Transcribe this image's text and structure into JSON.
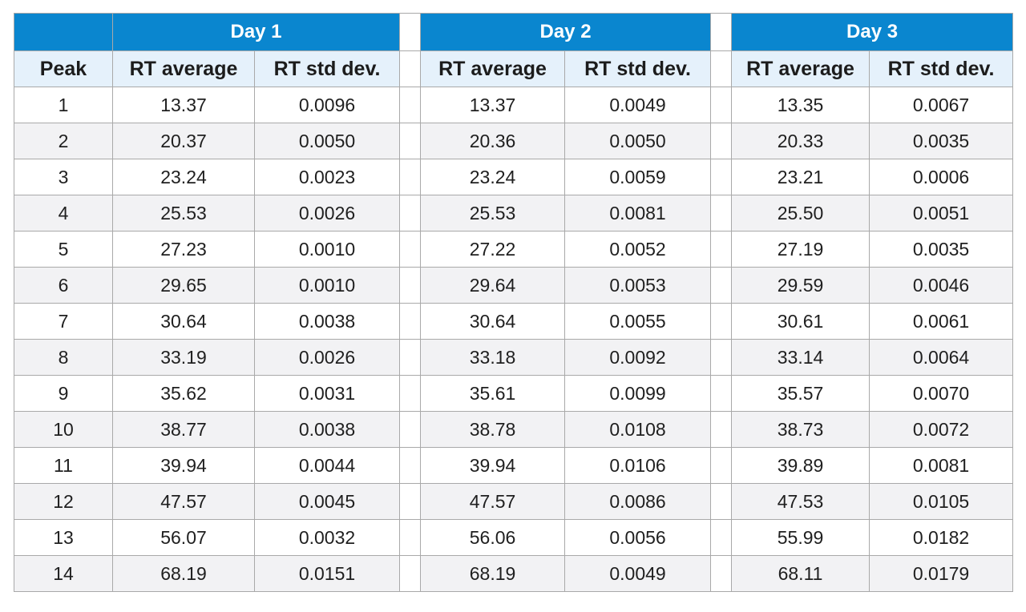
{
  "table": {
    "days": [
      "Day 1",
      "Day 2",
      "Day 3"
    ],
    "columns": {
      "peak": "Peak",
      "rt_average": "RT average",
      "rt_std_dev": "RT std dev."
    },
    "rows": [
      {
        "peak": "1",
        "day1_avg": "13.37",
        "day1_sd": "0.0096",
        "day2_avg": "13.37",
        "day2_sd": "0.0049",
        "day3_avg": "13.35",
        "day3_sd": "0.0067"
      },
      {
        "peak": "2",
        "day1_avg": "20.37",
        "day1_sd": "0.0050",
        "day2_avg": "20.36",
        "day2_sd": "0.0050",
        "day3_avg": "20.33",
        "day3_sd": "0.0035"
      },
      {
        "peak": "3",
        "day1_avg": "23.24",
        "day1_sd": "0.0023",
        "day2_avg": "23.24",
        "day2_sd": "0.0059",
        "day3_avg": "23.21",
        "day3_sd": "0.0006"
      },
      {
        "peak": "4",
        "day1_avg": "25.53",
        "day1_sd": "0.0026",
        "day2_avg": "25.53",
        "day2_sd": "0.0081",
        "day3_avg": "25.50",
        "day3_sd": "0.0051"
      },
      {
        "peak": "5",
        "day1_avg": "27.23",
        "day1_sd": "0.0010",
        "day2_avg": "27.22",
        "day2_sd": "0.0052",
        "day3_avg": "27.19",
        "day3_sd": "0.0035"
      },
      {
        "peak": "6",
        "day1_avg": "29.65",
        "day1_sd": "0.0010",
        "day2_avg": "29.64",
        "day2_sd": "0.0053",
        "day3_avg": "29.59",
        "day3_sd": "0.0046"
      },
      {
        "peak": "7",
        "day1_avg": "30.64",
        "day1_sd": "0.0038",
        "day2_avg": "30.64",
        "day2_sd": "0.0055",
        "day3_avg": "30.61",
        "day3_sd": "0.0061"
      },
      {
        "peak": "8",
        "day1_avg": "33.19",
        "day1_sd": "0.0026",
        "day2_avg": "33.18",
        "day2_sd": "0.0092",
        "day3_avg": "33.14",
        "day3_sd": "0.0064"
      },
      {
        "peak": "9",
        "day1_avg": "35.62",
        "day1_sd": "0.0031",
        "day2_avg": "35.61",
        "day2_sd": "0.0099",
        "day3_avg": "35.57",
        "day3_sd": "0.0070"
      },
      {
        "peak": "10",
        "day1_avg": "38.77",
        "day1_sd": "0.0038",
        "day2_avg": "38.78",
        "day2_sd": "0.0108",
        "day3_avg": "38.73",
        "day3_sd": "0.0072"
      },
      {
        "peak": "11",
        "day1_avg": "39.94",
        "day1_sd": "0.0044",
        "day2_avg": "39.94",
        "day2_sd": "0.0106",
        "day3_avg": "39.89",
        "day3_sd": "0.0081"
      },
      {
        "peak": "12",
        "day1_avg": "47.57",
        "day1_sd": "0.0045",
        "day2_avg": "47.57",
        "day2_sd": "0.0086",
        "day3_avg": "47.53",
        "day3_sd": "0.0105"
      },
      {
        "peak": "13",
        "day1_avg": "56.07",
        "day1_sd": "0.0032",
        "day2_avg": "56.06",
        "day2_sd": "0.0056",
        "day3_avg": "55.99",
        "day3_sd": "0.0182"
      },
      {
        "peak": "14",
        "day1_avg": "68.19",
        "day1_sd": "0.0151",
        "day2_avg": "68.19",
        "day2_sd": "0.0049",
        "day3_avg": "68.11",
        "day3_sd": "0.0179"
      }
    ]
  },
  "colors": {
    "header_blue": "#0a86cf",
    "subheader_bg": "#e5f1fb",
    "alt_row_bg": "#f2f2f4",
    "border": "#a9a9a9"
  }
}
